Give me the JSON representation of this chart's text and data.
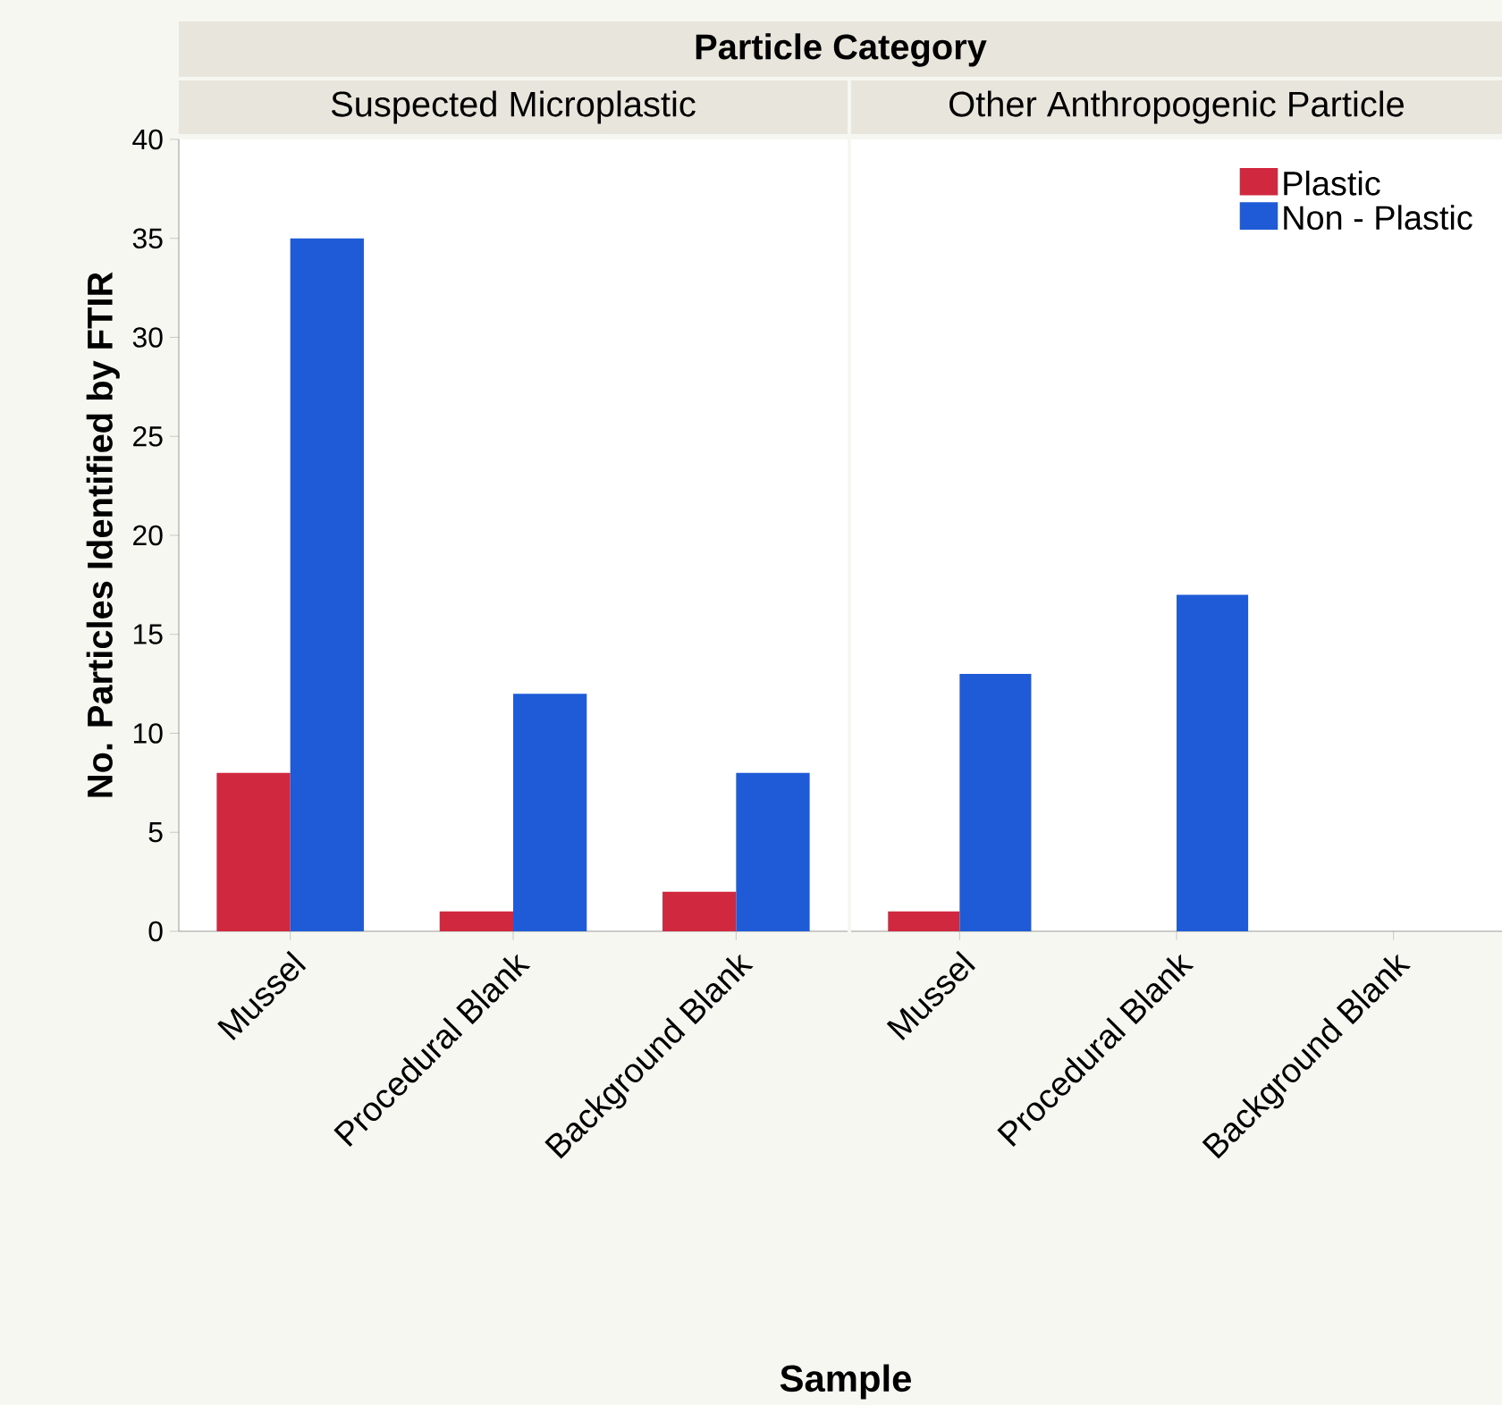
{
  "chart_data": [
    {
      "type": "bar",
      "title": "Suspected Microplastic",
      "annotations": [
        "Particle Category"
      ],
      "xlabel": "Sample",
      "ylabel": "No. Particles Identified by FTIR",
      "categories": [
        "Mussel",
        "Procedural Blank",
        "Background Blank"
      ],
      "series": [
        {
          "color": "#d0283f",
          "values": [
            8,
            1,
            2
          ]
        },
        {
          "color": "#1f5bd6",
          "values": [
            35,
            12,
            8
          ]
        }
      ],
      "ylim": [
        0,
        40
      ],
      "yticks": [
        0,
        5,
        10,
        15,
        20,
        25,
        30,
        35,
        40
      ],
      "legend": false
    },
    {
      "type": "bar",
      "title": "Other Anthropogenic Particle",
      "categories": [
        "Mussel",
        "Procedural Blank",
        "Background Blank"
      ],
      "series": [
        {
          "name": "Plastic",
          "color": "#d0283f",
          "values": [
            1,
            null,
            null
          ]
        },
        {
          "name": "Non - Plastic",
          "color": "#1f5bd6",
          "values": [
            13,
            17,
            null
          ]
        }
      ],
      "ylim": [
        0,
        40
      ],
      "yticks": [
        0,
        5,
        10,
        15,
        20,
        25,
        30,
        35,
        40
      ],
      "tick_labels": "x",
      "legend": "top right"
    }
  ]
}
